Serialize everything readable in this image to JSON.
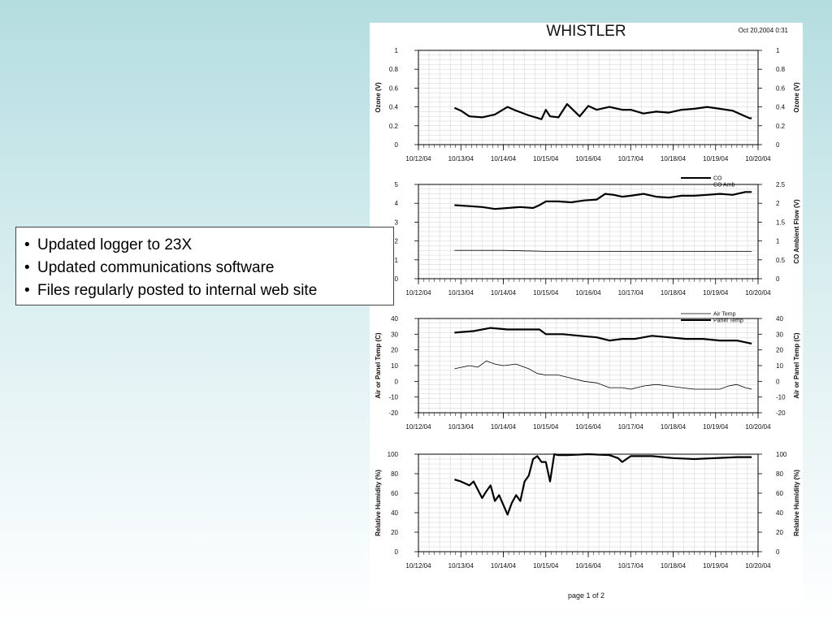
{
  "header": {
    "title": "WHISTLER",
    "timestamp": "Oct 20,2004 0:31"
  },
  "footer": {
    "page_label": "page 1 of 2"
  },
  "callout": {
    "bullets": [
      "Updated logger to 23X",
      "Updated communications software",
      "Files regularly posted to internal web site"
    ]
  },
  "colors": {
    "trace": "#000000",
    "grid": "#d0d0d0"
  },
  "chart_data": [
    {
      "type": "line",
      "title": "",
      "x_ticks": [
        "10/12/04",
        "10/13/04",
        "10/14/04",
        "10/15/04",
        "10/16/04",
        "10/17/04",
        "10/18/04",
        "10/19/04",
        "10/20/04"
      ],
      "xlim": [
        0,
        8
      ],
      "ylabel": "Ozone (V)",
      "ylim": [
        0,
        1
      ],
      "y_ticks": [
        0,
        0.2,
        0.4,
        0.6,
        0.8,
        1
      ],
      "y2label": "Ozone (V)",
      "y2lim": [
        0,
        1
      ],
      "y2_ticks": [
        0,
        0.2,
        0.4,
        0.6,
        0.8,
        1
      ],
      "grid": true,
      "series": [
        {
          "axis": "left",
          "weight": "heavy",
          "x": [
            0.85,
            1,
            1.2,
            1.5,
            1.8,
            2.1,
            2.3,
            2.6,
            2.9,
            3.0,
            3.1,
            3.3,
            3.5,
            3.8,
            4.0,
            4.2,
            4.5,
            4.8,
            5.0,
            5.3,
            5.6,
            5.9,
            6.2,
            6.5,
            6.8,
            7.1,
            7.4,
            7.6,
            7.8,
            7.85
          ],
          "y": [
            0.39,
            0.36,
            0.3,
            0.29,
            0.32,
            0.4,
            0.36,
            0.31,
            0.27,
            0.37,
            0.3,
            0.29,
            0.43,
            0.3,
            0.41,
            0.37,
            0.4,
            0.37,
            0.37,
            0.33,
            0.35,
            0.34,
            0.37,
            0.38,
            0.4,
            0.38,
            0.36,
            0.32,
            0.28,
            0.28
          ]
        }
      ]
    },
    {
      "type": "line",
      "title": "",
      "x_ticks": [
        "10/12/04",
        "10/13/04",
        "10/14/04",
        "10/15/04",
        "10/16/04",
        "10/17/04",
        "10/18/04",
        "10/19/04",
        "10/20/04"
      ],
      "xlim": [
        0,
        8
      ],
      "ylabel": "",
      "ylim": [
        0,
        5
      ],
      "y_ticks": [
        0,
        1,
        2,
        3,
        4,
        5
      ],
      "y2label": "CO Ambient Flow (V)",
      "y2lim": [
        0,
        2.5
      ],
      "y2_ticks": [
        0,
        0.5,
        1,
        1.5,
        2,
        2.5
      ],
      "legend": "top-right",
      "grid": true,
      "series": [
        {
          "name": "CO",
          "axis": "left",
          "weight": "heavy",
          "x": [
            0.85,
            1.2,
            1.5,
            1.8,
            2.1,
            2.4,
            2.7,
            2.85,
            3.0,
            3.3,
            3.6,
            3.9,
            4.2,
            4.4,
            4.6,
            4.8,
            5.0,
            5.3,
            5.6,
            5.9,
            6.2,
            6.5,
            6.8,
            7.1,
            7.4,
            7.7,
            7.85
          ],
          "y": [
            3.9,
            3.85,
            3.8,
            3.7,
            3.75,
            3.8,
            3.75,
            3.9,
            4.1,
            4.1,
            4.05,
            4.15,
            4.2,
            4.5,
            4.45,
            4.35,
            4.4,
            4.5,
            4.35,
            4.3,
            4.4,
            4.4,
            4.45,
            4.5,
            4.45,
            4.6,
            4.6
          ]
        },
        {
          "name": "CO Amb",
          "axis": "left",
          "weight": "light",
          "x": [
            0.85,
            2.0,
            3.0,
            4.0,
            5.0,
            6.0,
            7.0,
            7.85
          ],
          "y": [
            1.5,
            1.5,
            1.45,
            1.45,
            1.45,
            1.45,
            1.45,
            1.45
          ]
        }
      ]
    },
    {
      "type": "line",
      "title": "",
      "x_ticks": [
        "10/12/04",
        "10/13/04",
        "10/14/04",
        "10/15/04",
        "10/16/04",
        "10/17/04",
        "10/18/04",
        "10/19/04",
        "10/20/04"
      ],
      "xlim": [
        0,
        8
      ],
      "ylabel": "Air or Panel Temp (C)",
      "ylim": [
        -20,
        40
      ],
      "y_ticks": [
        -20,
        -10,
        0,
        10,
        20,
        30,
        40
      ],
      "y2label": "Air or Panel Temp (C)",
      "y2lim": [
        -20,
        40
      ],
      "y2_ticks": [
        -20,
        -10,
        0,
        10,
        20,
        30,
        40
      ],
      "legend": "top-right",
      "grid": true,
      "series": [
        {
          "name": "Air Temp",
          "axis": "left",
          "weight": "light",
          "x": [
            0.85,
            1.2,
            1.4,
            1.6,
            1.8,
            2.0,
            2.3,
            2.6,
            2.8,
            3.0,
            3.3,
            3.6,
            3.9,
            4.2,
            4.5,
            4.8,
            5.0,
            5.3,
            5.6,
            5.9,
            6.2,
            6.5,
            6.8,
            7.1,
            7.3,
            7.5,
            7.7,
            7.85
          ],
          "y": [
            8,
            10,
            9,
            13,
            11,
            10,
            11,
            8,
            5,
            4,
            4,
            2,
            0,
            -1,
            -4,
            -4,
            -5,
            -3,
            -2,
            -3,
            -4,
            -5,
            -5,
            -5,
            -3,
            -2,
            -4,
            -5
          ]
        },
        {
          "name": "Panel Temp",
          "axis": "left",
          "weight": "heavy",
          "x": [
            0.85,
            1.3,
            1.7,
            2.1,
            2.5,
            2.85,
            3.0,
            3.4,
            3.8,
            4.2,
            4.5,
            4.8,
            5.1,
            5.5,
            5.9,
            6.3,
            6.7,
            7.1,
            7.5,
            7.85
          ],
          "y": [
            31,
            32,
            34,
            33,
            33,
            33,
            30,
            30,
            29,
            28,
            26,
            27,
            27,
            29,
            28,
            27,
            27,
            26,
            26,
            24
          ]
        }
      ]
    },
    {
      "type": "line",
      "title": "",
      "x_ticks": [
        "10/12/04",
        "10/13/04",
        "10/14/04",
        "10/15/04",
        "10/16/04",
        "10/17/04",
        "10/18/04",
        "10/19/04",
        "10/20/04"
      ],
      "xlim": [
        0,
        8
      ],
      "ylabel": "Relative Humidity (%)",
      "ylim": [
        0,
        100
      ],
      "y_ticks": [
        0,
        20,
        40,
        60,
        80,
        100
      ],
      "y2label": "Relative Humidity (%)",
      "y2lim": [
        0,
        100
      ],
      "y2_ticks": [
        0,
        20,
        40,
        60,
        80,
        100
      ],
      "grid": true,
      "series": [
        {
          "axis": "left",
          "weight": "heavy",
          "x": [
            0.85,
            1.0,
            1.2,
            1.3,
            1.5,
            1.6,
            1.7,
            1.8,
            1.9,
            2.0,
            2.1,
            2.2,
            2.3,
            2.4,
            2.5,
            2.6,
            2.7,
            2.8,
            2.9,
            3.0,
            3.1,
            3.2,
            3.3,
            3.5,
            4.0,
            4.5,
            4.7,
            4.8,
            5.0,
            5.5,
            6.0,
            6.5,
            7.0,
            7.5,
            7.85
          ],
          "y": [
            74,
            72,
            68,
            72,
            55,
            62,
            68,
            52,
            58,
            48,
            38,
            50,
            58,
            52,
            72,
            78,
            95,
            98,
            92,
            92,
            72,
            100,
            99,
            99,
            100,
            99,
            96,
            92,
            98,
            98,
            96,
            95,
            96,
            97,
            97
          ]
        }
      ]
    }
  ]
}
